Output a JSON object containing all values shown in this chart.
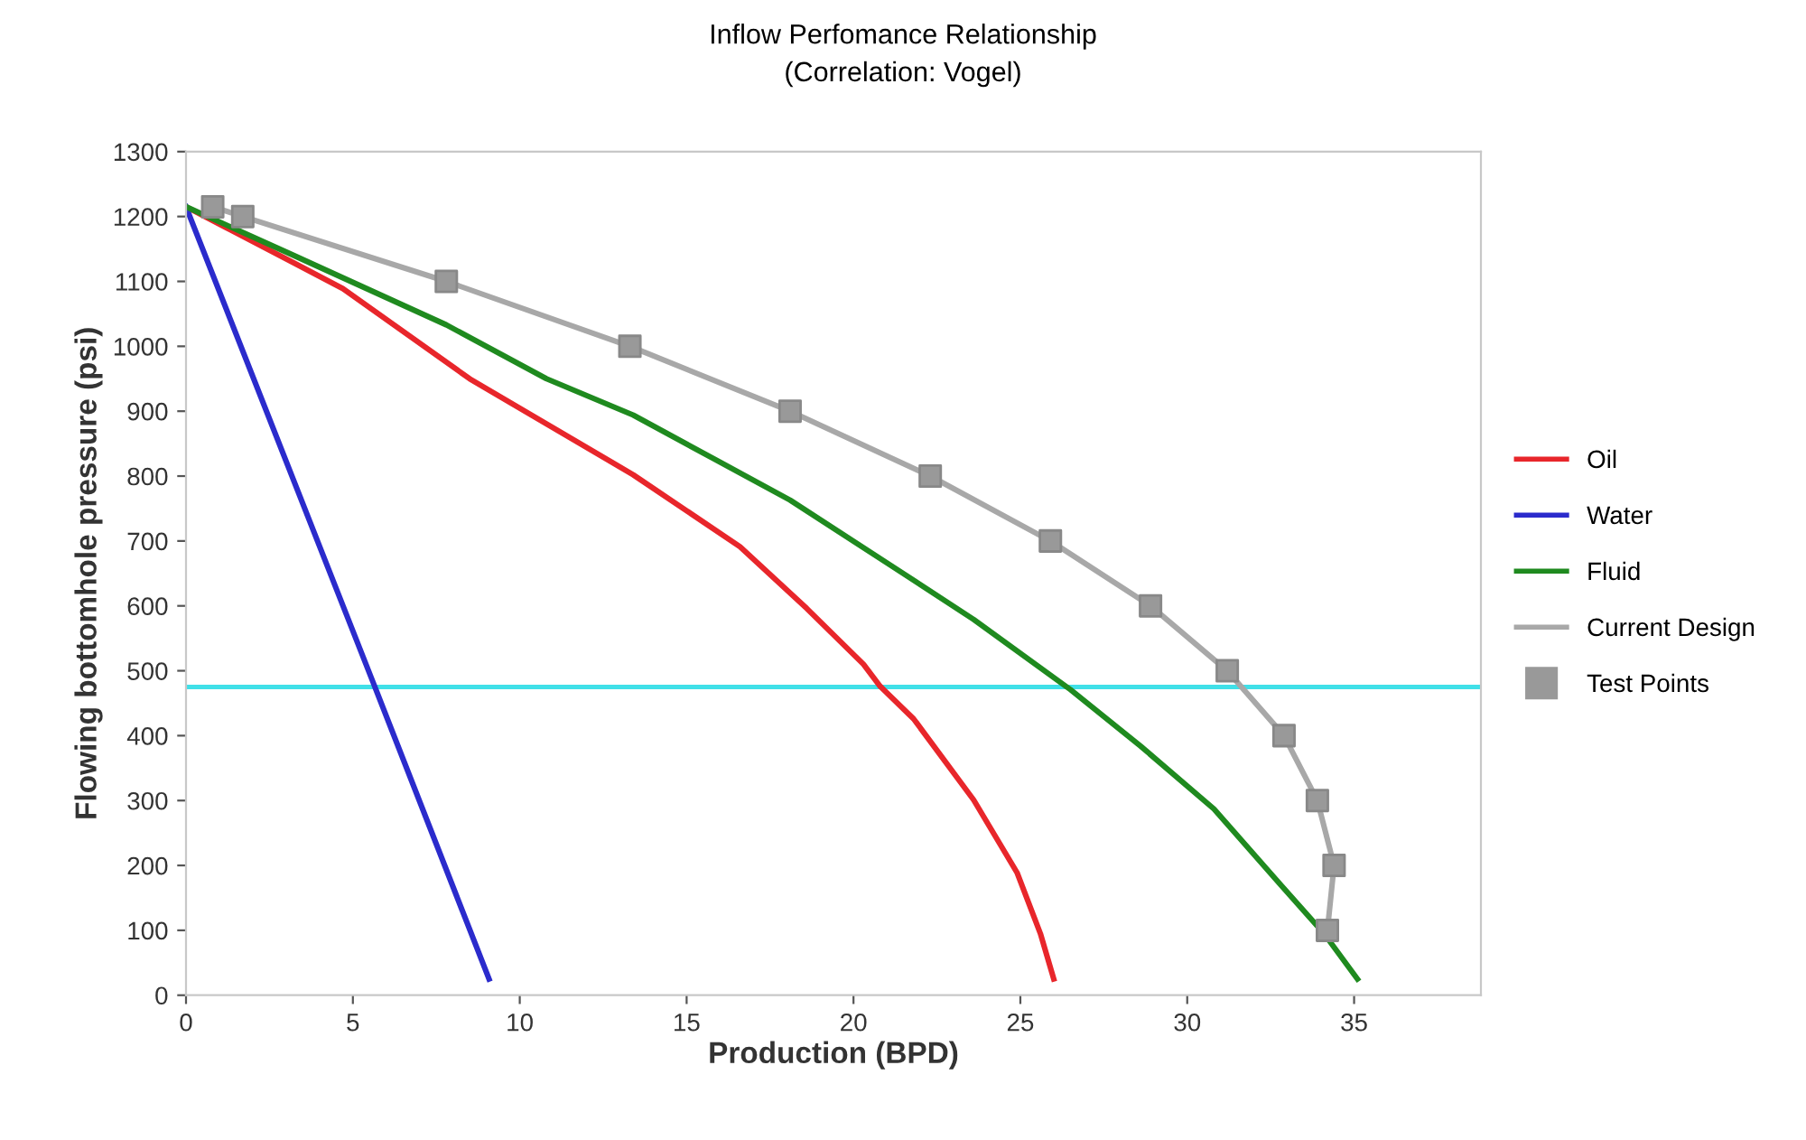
{
  "chart_data": {
    "type": "line",
    "title": "Inflow Perfomance Relationship",
    "subtitle": "(Correlation: Vogel)",
    "xlabel": "Production (BPD)",
    "ylabel": "Flowing bottomhole pressure (psi)",
    "xlim": [
      0,
      38.8
    ],
    "xticks": [
      0,
      5,
      10,
      15,
      20,
      25,
      30,
      35
    ],
    "ylim": [
      0,
      1300
    ],
    "yticks": [
      0,
      100,
      200,
      300,
      400,
      500,
      600,
      700,
      800,
      900,
      1000,
      1100,
      1200,
      1300
    ],
    "grid": false,
    "legend": "right",
    "marker": "none",
    "ref_lines": [
      {
        "axis": "y",
        "value": 475,
        "color": "#40e0e8"
      }
    ],
    "series": [
      {
        "name": "Oil",
        "color": "#e8262b",
        "x": [
          0,
          3.1,
          4.7,
          8.5,
          13.4,
          16.6,
          18.6,
          20.3,
          20.8,
          21.8,
          23.6,
          24.9,
          25.6,
          26.0
        ],
        "values": [
          1215,
          1132,
          1089,
          950,
          802,
          691,
          596,
          510,
          476,
          426,
          301,
          189,
          95,
          25
        ]
      },
      {
        "name": "Water",
        "color": "#2b2bcc",
        "x": [
          0,
          5.66,
          9.08
        ],
        "values": [
          1215,
          475,
          25
        ]
      },
      {
        "name": "Fluid",
        "color": "#1f8a1f",
        "x": [
          0,
          3.1,
          7.8,
          10.8,
          13.4,
          18.1,
          21.1,
          23.6,
          26.5,
          28.6,
          30.8,
          32.8,
          34.1,
          35.1
        ],
        "values": [
          1215,
          1143,
          1033,
          950,
          894,
          763,
          663,
          579,
          471,
          384,
          287,
          170,
          95,
          25
        ]
      },
      {
        "name": "Current Design",
        "color": "#a8a8a8",
        "x": [
          0.8,
          1.7,
          7.8,
          13.3,
          18.1,
          22.3,
          25.9,
          28.9,
          31.2,
          32.9,
          33.9,
          34.4,
          34.2
        ],
        "values": [
          1215,
          1200,
          1100,
          1000,
          900,
          800,
          700,
          600,
          500,
          400,
          300,
          200,
          100
        ]
      },
      {
        "name": "Test Points",
        "type": "scatter",
        "marker": "square",
        "color": "#999999",
        "x": [
          0.8,
          1.7,
          7.8,
          13.3,
          18.1,
          22.3,
          25.9,
          28.9,
          31.2,
          32.9,
          33.9,
          34.4,
          34.2
        ],
        "values": [
          1215,
          1200,
          1100,
          1000,
          900,
          800,
          700,
          600,
          500,
          400,
          300,
          200,
          100
        ]
      }
    ]
  }
}
